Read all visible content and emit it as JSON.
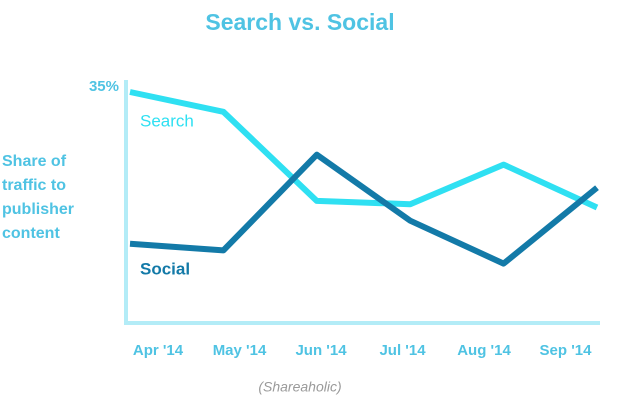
{
  "chart_data": {
    "type": "line",
    "title": "Search vs. Social",
    "y_label": [
      "Share of",
      "traffic to",
      "publisher",
      "content"
    ],
    "source": "(Shareaholic)",
    "categories": [
      "Apr '14",
      "May '14",
      "Jun '14",
      "Jul '14",
      "Aug '14",
      "Sep '14"
    ],
    "series": [
      {
        "name": "Search",
        "color": "#2fe0f2",
        "values": [
          35,
          32,
          18.5,
          18,
          24,
          17.5
        ]
      },
      {
        "name": "Social",
        "color": "#137aa8",
        "values": [
          12,
          11,
          25.5,
          15.5,
          9,
          20.5
        ]
      }
    ],
    "ylim": [
      0,
      35
    ],
    "yticks": [
      {
        "value": 35,
        "label": "35%"
      }
    ],
    "grid": false
  }
}
